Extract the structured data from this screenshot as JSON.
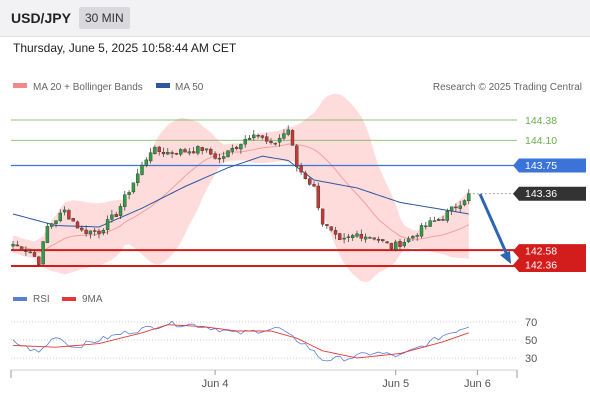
{
  "header": {
    "pair": "USD/JPY",
    "timeframe": "30 MIN"
  },
  "timestamp": "Thursday, June 5, 2025 10:58:44 AM CET",
  "legend": {
    "bollinger": "MA 20 + Bollinger Bands",
    "ma50": "MA 50",
    "credit": "Research © 2025 Trading Central"
  },
  "rsi_legend": {
    "rsi": "RSI",
    "ma9": "9MA"
  },
  "colors": {
    "bullish": "#2e9e44",
    "bearish": "#c43a32",
    "support": "#d31c1c",
    "resistance_blue": "#3b73d9",
    "target_green": "#6ab04c",
    "ma50": "#2f56a0",
    "band": "#ffd6d6",
    "rsi": "#5b7fd9",
    "rsi_ma": "#e03a3a",
    "arrow": "#2e64b2",
    "price_tag": "#333333"
  },
  "chart_data": {
    "type": "candlestick",
    "symbol": "USD/JPY",
    "timeframe": "30 MIN",
    "x_ticks": [
      "Jun 4",
      "Jun 5",
      "Jun 6"
    ],
    "price_range": [
      142.2,
      144.55
    ],
    "levels": [
      {
        "value": 144.38,
        "label": "144.38",
        "kind": "target"
      },
      {
        "value": 144.1,
        "label": "144.10",
        "kind": "target"
      },
      {
        "value": 143.75,
        "label": "143.75",
        "kind": "resistance"
      },
      {
        "value": 143.36,
        "label": "143.36",
        "kind": "last"
      },
      {
        "value": 142.58,
        "label": "142.58",
        "kind": "support"
      },
      {
        "value": 142.36,
        "label": "142.36",
        "kind": "support"
      }
    ],
    "anchors": [
      [
        0,
        142.66
      ],
      [
        4,
        142.56
      ],
      [
        6,
        142.42
      ],
      [
        8,
        142.9
      ],
      [
        12,
        143.12
      ],
      [
        16,
        142.84
      ],
      [
        20,
        142.84
      ],
      [
        24,
        143.08
      ],
      [
        28,
        143.52
      ],
      [
        32,
        143.96
      ],
      [
        36,
        143.93
      ],
      [
        40,
        143.95
      ],
      [
        44,
        143.98
      ],
      [
        48,
        143.84
      ],
      [
        52,
        144.02
      ],
      [
        56,
        144.22
      ],
      [
        60,
        144.02
      ],
      [
        64,
        144.25
      ],
      [
        66,
        143.74
      ],
      [
        70,
        143.44
      ],
      [
        72,
        142.96
      ],
      [
        76,
        142.68
      ],
      [
        80,
        142.8
      ],
      [
        84,
        142.76
      ],
      [
        88,
        142.62
      ],
      [
        92,
        142.73
      ],
      [
        96,
        142.92
      ],
      [
        100,
        143.04
      ],
      [
        104,
        143.24
      ],
      [
        106,
        143.36
      ]
    ],
    "ma50": [
      [
        0,
        143.08
      ],
      [
        10,
        142.92
      ],
      [
        20,
        142.9
      ],
      [
        30,
        143.16
      ],
      [
        40,
        143.46
      ],
      [
        50,
        143.72
      ],
      [
        58,
        143.88
      ],
      [
        64,
        143.82
      ],
      [
        70,
        143.55
      ],
      [
        80,
        143.44
      ],
      [
        90,
        143.24
      ],
      [
        106,
        143.08
      ]
    ],
    "rsi": {
      "range": [
        0,
        100
      ],
      "ticks": [
        70,
        50,
        30
      ],
      "values": [
        [
          0,
          48
        ],
        [
          6,
          36
        ],
        [
          10,
          55
        ],
        [
          14,
          42
        ],
        [
          20,
          50
        ],
        [
          26,
          58
        ],
        [
          30,
          62
        ],
        [
          36,
          68
        ],
        [
          42,
          67
        ],
        [
          48,
          62
        ],
        [
          52,
          57
        ],
        [
          58,
          61
        ],
        [
          62,
          63
        ],
        [
          64,
          55
        ],
        [
          68,
          45
        ],
        [
          72,
          28
        ],
        [
          78,
          30
        ],
        [
          84,
          36
        ],
        [
          90,
          32
        ],
        [
          96,
          45
        ],
        [
          100,
          55
        ],
        [
          106,
          66
        ]
      ],
      "ma9": [
        [
          0,
          44
        ],
        [
          10,
          42
        ],
        [
          20,
          46
        ],
        [
          30,
          58
        ],
        [
          36,
          67
        ],
        [
          44,
          65
        ],
        [
          52,
          60
        ],
        [
          60,
          60
        ],
        [
          66,
          52
        ],
        [
          72,
          38
        ],
        [
          80,
          30
        ],
        [
          90,
          35
        ],
        [
          100,
          48
        ],
        [
          106,
          58
        ]
      ]
    }
  }
}
